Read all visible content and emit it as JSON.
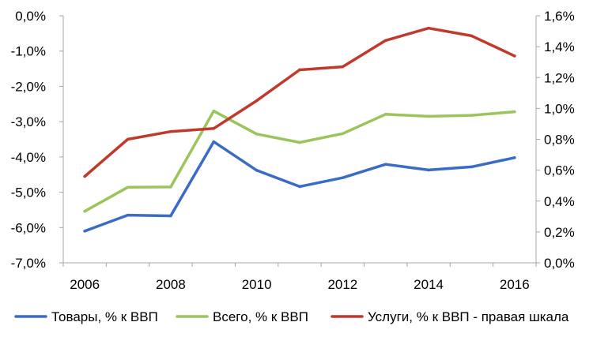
{
  "chart_data": {
    "type": "line",
    "title": "",
    "xlabel": "",
    "ylabel_left": "",
    "ylabel_right": "",
    "x": [
      2006,
      2007,
      2008,
      2009,
      2010,
      2011,
      2012,
      2013,
      2014,
      2015,
      2016
    ],
    "x_ticks": [
      2006,
      2008,
      2010,
      2012,
      2014,
      2016
    ],
    "x_tick_labels": [
      "2006",
      "2008",
      "2010",
      "2012",
      "2014",
      "2016"
    ],
    "ylim_left": [
      -7,
      0
    ],
    "y_ticks_left": [
      0,
      -1,
      -2,
      -3,
      -4,
      -5,
      -6,
      -7
    ],
    "y_tick_labels_left": [
      "0,0%",
      "-1,0%",
      "-2,0%",
      "-3,0%",
      "-4,0%",
      "-5,0%",
      "-6,0%",
      "-7,0%"
    ],
    "ylim_right": [
      0,
      1.6
    ],
    "y_ticks_right": [
      1.6,
      1.4,
      1.2,
      1.0,
      0.8,
      0.6,
      0.4,
      0.2,
      0.0
    ],
    "y_tick_labels_right": [
      "1,6%",
      "1,4%",
      "1,2%",
      "1,0%",
      "0,8%",
      "0,6%",
      "0,4%",
      "0,2%",
      "0,0%"
    ],
    "grid": false,
    "legend_position": "bottom",
    "series": [
      {
        "name": "Товары, % к ВВП",
        "axis": "left",
        "color": "#3a6bc6",
        "values": [
          -6.1,
          -5.65,
          -5.67,
          -3.57,
          -4.38,
          -4.84,
          -4.59,
          -4.21,
          -4.37,
          -4.28,
          -4.02
        ]
      },
      {
        "name": "Всего, % к ВВП",
        "axis": "left",
        "color": "#9bc45b",
        "values": [
          -5.54,
          -4.86,
          -4.85,
          -2.7,
          -3.35,
          -3.59,
          -3.34,
          -2.79,
          -2.85,
          -2.82,
          -2.72
        ]
      },
      {
        "name": "Услуги, % к ВВП - правая шкала",
        "axis": "right",
        "color": "#c0392b",
        "values": [
          0.56,
          0.8,
          0.85,
          0.87,
          1.05,
          1.25,
          1.27,
          1.44,
          1.52,
          1.47,
          1.34
        ]
      }
    ]
  }
}
